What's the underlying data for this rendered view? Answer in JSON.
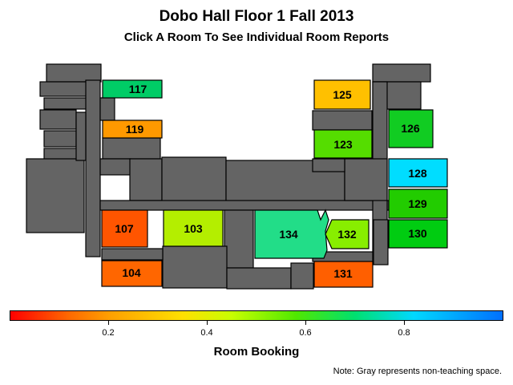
{
  "title": "Dobo Hall Floor 1 Fall 2013",
  "subtitle": "Click A Room To See Individual Room Reports",
  "rooms": [
    {
      "id": "117",
      "label": "117",
      "color": "#00cc66"
    },
    {
      "id": "119",
      "label": "119",
      "color": "#ff9900"
    },
    {
      "id": "107",
      "label": "107",
      "color": "#ff5500"
    },
    {
      "id": "103",
      "label": "103",
      "color": "#b4ee00"
    },
    {
      "id": "104",
      "label": "104",
      "color": "#ff6600"
    },
    {
      "id": "134",
      "label": "134",
      "color": "#22dd88"
    },
    {
      "id": "132",
      "label": "132",
      "color": "#88ee00"
    },
    {
      "id": "131",
      "label": "131",
      "color": "#ff5f00"
    },
    {
      "id": "125",
      "label": "125",
      "color": "#ffc000"
    },
    {
      "id": "123",
      "label": "123",
      "color": "#55dd00"
    },
    {
      "id": "126",
      "label": "126",
      "color": "#11cc22"
    },
    {
      "id": "128",
      "label": "128",
      "color": "#00ddff"
    },
    {
      "id": "129",
      "label": "129",
      "color": "#22cc00"
    },
    {
      "id": "130",
      "label": "130",
      "color": "#00cc11"
    }
  ],
  "legend": {
    "title": "Room Booking",
    "ticks": [
      "0.2",
      "0.4",
      "0.6",
      "0.8"
    ],
    "tick_values": [
      0.2,
      0.4,
      0.6,
      0.8
    ],
    "range": [
      0,
      1
    ],
    "colors": [
      "#ff0000",
      "#ffe000",
      "#50e800",
      "#00d8ff",
      "#0070ff"
    ]
  },
  "note": "Note: Gray represents non-teaching space.",
  "non_teaching_color": "#646464"
}
